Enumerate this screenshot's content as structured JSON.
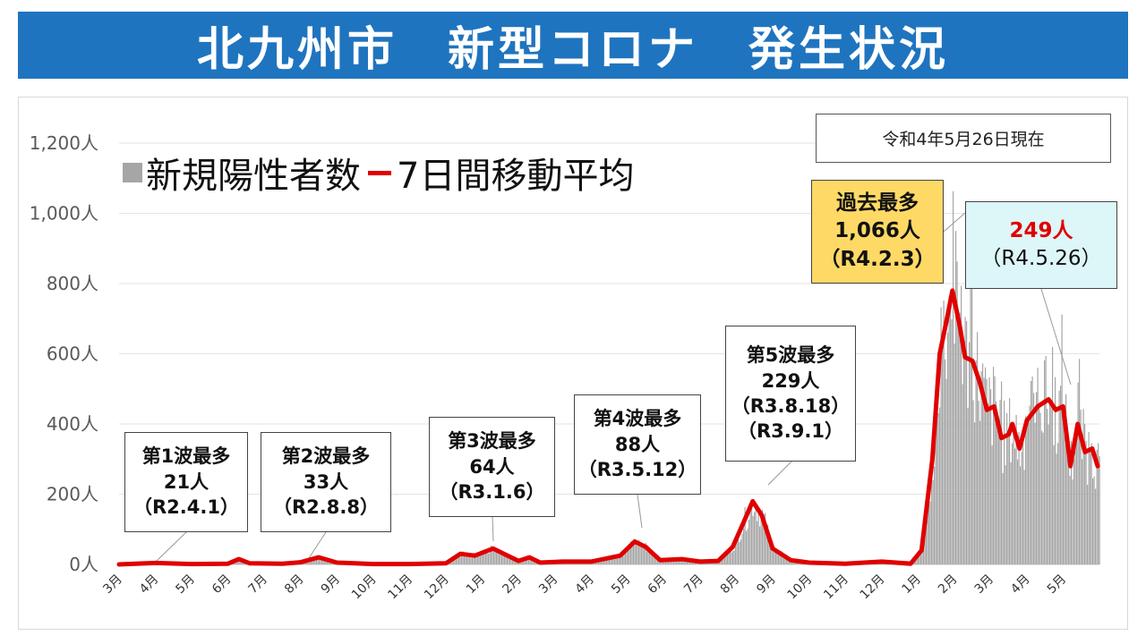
{
  "title": "北九州市　新型コロナ　発生状況",
  "as_of": "令和4年5月26日現在",
  "legend": {
    "bars": "新規陽性者数",
    "line": "7日間移動平均"
  },
  "colors": {
    "banner": "#1f74bf",
    "bars": "#a6a6a6",
    "line": "#e00000",
    "max_box": "#ffd966",
    "current_box": "#ddf6f8"
  },
  "annotations": {
    "wave1": {
      "title": "第1波最多",
      "value": "21人",
      "date": "（R2.4.1）"
    },
    "wave2": {
      "title": "第2波最多",
      "value": "33人",
      "date": "（R2.8.8）"
    },
    "wave3": {
      "title": "第3波最多",
      "value": "64人",
      "date": "（R3.1.6）"
    },
    "wave4": {
      "title": "第4波最多",
      "value": "88人",
      "date": "（R3.5.12）"
    },
    "wave5": {
      "title": "第5波最多",
      "value": "229人",
      "date1": "（R3.8.18）",
      "date2": "（R3.9.1）"
    },
    "max": {
      "title": "過去最多",
      "value": "1,066人",
      "date": "（R4.2.3）"
    },
    "current": {
      "value": "249人",
      "date": "（R4.5.26）"
    }
  },
  "chart_data": {
    "type": "bar",
    "ylim": [
      0,
      1300
    ],
    "y_ticks": [
      0,
      200,
      400,
      600,
      800,
      1000,
      1200
    ],
    "y_tick_labels": [
      "0人",
      "200人",
      "400人",
      "600人",
      "800人",
      "1,000人",
      "1,200人"
    ],
    "x_tick_labels": [
      "3月",
      "4月",
      "5月",
      "6月",
      "7月",
      "8月",
      "9月",
      "10月",
      "11月",
      "12月",
      "1月",
      "2月",
      "3月",
      "4月",
      "5月",
      "6月",
      "7月",
      "8月",
      "9月",
      "10月",
      "11月",
      "12月",
      "1月",
      "2月",
      "3月",
      "4月",
      "5月"
    ],
    "moving_average_approx": [
      {
        "month_index": 0,
        "value": 0
      },
      {
        "month_index": 1,
        "value": 4
      },
      {
        "month_index": 2,
        "value": 1
      },
      {
        "month_index": 3,
        "value": 2
      },
      {
        "month_index": 3.3,
        "value": 15
      },
      {
        "month_index": 3.6,
        "value": 3
      },
      {
        "month_index": 4.5,
        "value": 2
      },
      {
        "month_index": 5,
        "value": 6
      },
      {
        "month_index": 5.5,
        "value": 20
      },
      {
        "month_index": 6,
        "value": 5
      },
      {
        "month_index": 7,
        "value": 1
      },
      {
        "month_index": 8,
        "value": 1
      },
      {
        "month_index": 9,
        "value": 3
      },
      {
        "month_index": 9.4,
        "value": 30
      },
      {
        "month_index": 9.8,
        "value": 25
      },
      {
        "month_index": 10.3,
        "value": 45
      },
      {
        "month_index": 10.6,
        "value": 30
      },
      {
        "month_index": 11,
        "value": 10
      },
      {
        "month_index": 11.3,
        "value": 20
      },
      {
        "month_index": 11.6,
        "value": 5
      },
      {
        "month_index": 12.2,
        "value": 8
      },
      {
        "month_index": 13,
        "value": 8
      },
      {
        "month_index": 13.8,
        "value": 25
      },
      {
        "month_index": 14.2,
        "value": 65
      },
      {
        "month_index": 14.5,
        "value": 50
      },
      {
        "month_index": 14.9,
        "value": 12
      },
      {
        "month_index": 15.5,
        "value": 15
      },
      {
        "month_index": 16,
        "value": 8
      },
      {
        "month_index": 16.5,
        "value": 10
      },
      {
        "month_index": 16.9,
        "value": 50
      },
      {
        "month_index": 17.2,
        "value": 120
      },
      {
        "month_index": 17.45,
        "value": 180
      },
      {
        "month_index": 17.7,
        "value": 140
      },
      {
        "month_index": 18,
        "value": 45
      },
      {
        "month_index": 18.5,
        "value": 12
      },
      {
        "month_index": 19,
        "value": 5
      },
      {
        "month_index": 20,
        "value": 2
      },
      {
        "month_index": 21,
        "value": 8
      },
      {
        "month_index": 21.8,
        "value": 2
      },
      {
        "month_index": 22.1,
        "value": 40
      },
      {
        "month_index": 22.4,
        "value": 300
      },
      {
        "month_index": 22.6,
        "value": 600
      },
      {
        "month_index": 22.8,
        "value": 700
      },
      {
        "month_index": 22.95,
        "value": 780
      },
      {
        "month_index": 23.15,
        "value": 680
      },
      {
        "month_index": 23.3,
        "value": 590
      },
      {
        "month_index": 23.5,
        "value": 580
      },
      {
        "month_index": 23.7,
        "value": 520
      },
      {
        "month_index": 23.9,
        "value": 440
      },
      {
        "month_index": 24.1,
        "value": 450
      },
      {
        "month_index": 24.3,
        "value": 360
      },
      {
        "month_index": 24.5,
        "value": 370
      },
      {
        "month_index": 24.6,
        "value": 400
      },
      {
        "month_index": 24.8,
        "value": 330
      },
      {
        "month_index": 25.0,
        "value": 410
      },
      {
        "month_index": 25.3,
        "value": 450
      },
      {
        "month_index": 25.6,
        "value": 470
      },
      {
        "month_index": 25.8,
        "value": 440
      },
      {
        "month_index": 26.0,
        "value": 450
      },
      {
        "month_index": 26.2,
        "value": 280
      },
      {
        "month_index": 26.4,
        "value": 400
      },
      {
        "month_index": 26.6,
        "value": 320
      },
      {
        "month_index": 26.8,
        "value": 330
      },
      {
        "month_index": 26.95,
        "value": 280
      }
    ]
  }
}
